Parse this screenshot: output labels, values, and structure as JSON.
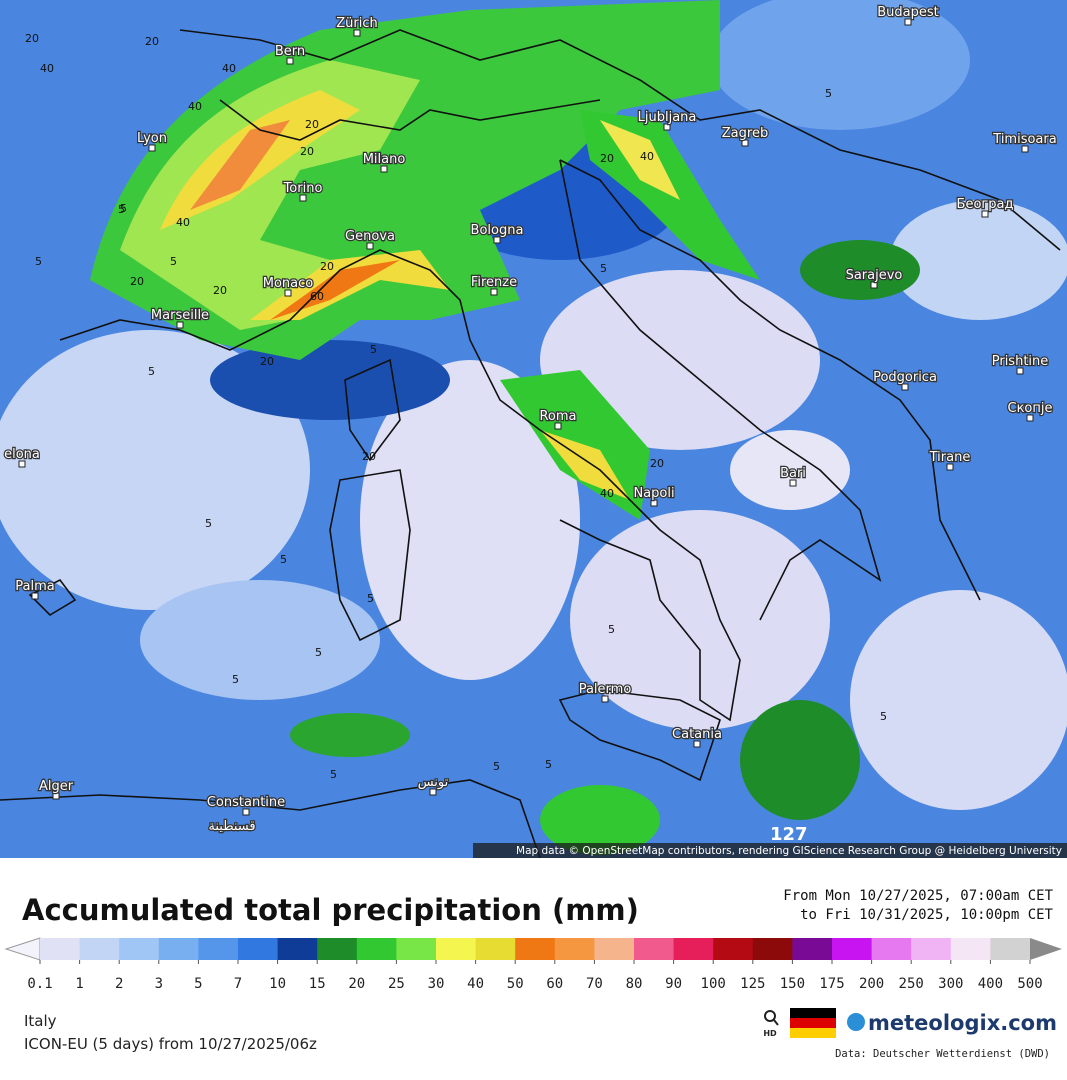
{
  "map": {
    "cities": [
      "Zürich",
      "Budapest",
      "Bern",
      "Lyon",
      "Ljubljana",
      "Zagreb",
      "Timisoara",
      "Milano",
      "Torino",
      "Београд",
      "Genova",
      "Bologna",
      "Sarajevo",
      "Monaco",
      "Firenze",
      "Marseille",
      "Podgorica",
      "Prishtine",
      "Roma",
      "Скопје",
      "elona",
      "Tirane",
      "Bari",
      "Napoli",
      "Palma",
      "Palermo",
      "Catania",
      "Alger",
      "Constantine",
      "قسنطينة",
      "تونس"
    ],
    "contour_labels": [
      "20",
      "20",
      "40",
      "40",
      "40",
      "20",
      "5",
      "5",
      "20",
      "40",
      "20",
      "20",
      "60",
      "5",
      "20",
      "20",
      "5",
      "5",
      "5",
      "20",
      "40",
      "20",
      "5",
      "5",
      "5",
      "5",
      "5",
      "5",
      "5",
      "5",
      "5",
      "5",
      "20",
      "40",
      "5",
      "5"
    ],
    "attribution": "Map data © OpenStreetMap contributors, rendering GIScience Research Group @ Heidelberg University",
    "corner_value": "127"
  },
  "legend": {
    "title": "Accumulated total precipitation (mm)",
    "period": [
      "From Mon 10/27/2025, 07:00am CET",
      "to Fri 10/31/2025, 10:00pm CET"
    ],
    "ticks": [
      0.1,
      1,
      2,
      3,
      5,
      7,
      10,
      15,
      20,
      25,
      30,
      40,
      50,
      60,
      70,
      80,
      90,
      100,
      125,
      150,
      175,
      200,
      250,
      300,
      400,
      500
    ],
    "colors": [
      "#e1e1f5",
      "#c3d5f5",
      "#a0c6f5",
      "#78aff0",
      "#5596eb",
      "#3278e1",
      "#0f3c96",
      "#1e8c28",
      "#32c832",
      "#78e646",
      "#f5f550",
      "#e6dc32",
      "#f07814",
      "#f59641",
      "#f5b48c",
      "#f05a8c",
      "#e61e5a",
      "#b40a14",
      "#8c0a0a",
      "#780a96",
      "#c814f0",
      "#e678f0",
      "#f0b4f5",
      "#f5e6f5",
      "#d2d2d2"
    ]
  },
  "footer": {
    "region": "Italy",
    "model": "ICON-EU (5 days) from 10/27/2025/06z",
    "hd": "HD",
    "brand": "meteologix.com",
    "source": "Data: Deutscher Wetterdienst (DWD)"
  }
}
